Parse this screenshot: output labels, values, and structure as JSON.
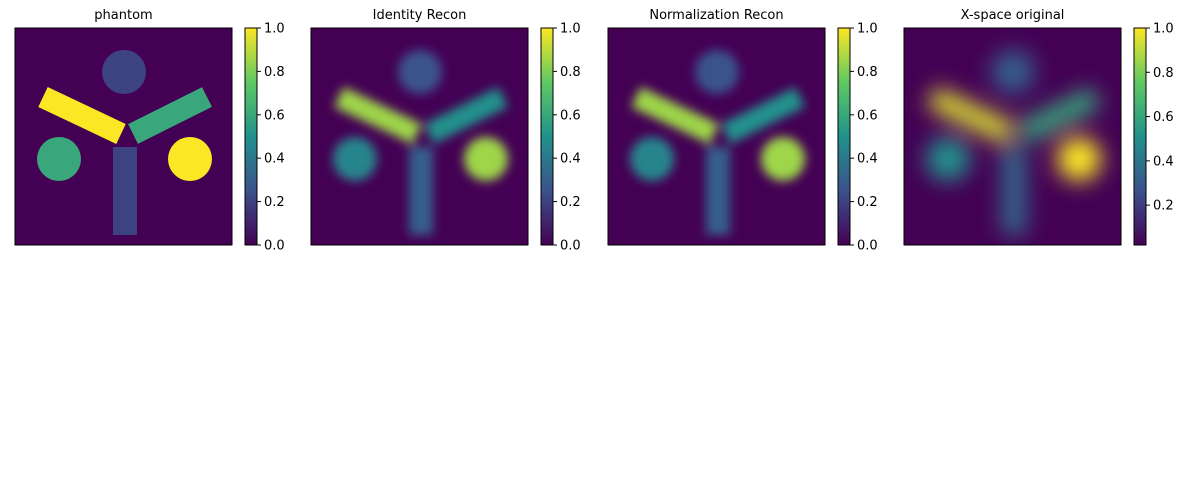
{
  "chart_data": [
    {
      "type": "heatmap",
      "title": "phantom",
      "variant": "sharp",
      "colormap": "viridis",
      "colorbar": {
        "ticks": [
          "0.0",
          "0.2",
          "0.4",
          "0.6",
          "0.8",
          "1.0"
        ],
        "range": [
          0,
          1
        ]
      },
      "axes": {
        "ticks": "off",
        "grid": false
      },
      "regions": [
        {
          "shape": "circle",
          "name": "top-disk",
          "value": 0.2
        },
        {
          "shape": "circle",
          "name": "left-disk",
          "value": 0.6
        },
        {
          "shape": "circle",
          "name": "right-disk",
          "value": 1.0
        },
        {
          "shape": "bar",
          "name": "left-arm",
          "value": 1.0
        },
        {
          "shape": "bar",
          "name": "right-arm",
          "value": 0.6
        },
        {
          "shape": "bar",
          "name": "stem",
          "value": 0.2
        }
      ]
    },
    {
      "type": "heatmap",
      "title": "Identity Recon",
      "variant": "recon",
      "colormap": "viridis",
      "colorbar": {
        "ticks": [
          "0.0",
          "0.2",
          "0.4",
          "0.6",
          "0.8",
          "1.0"
        ],
        "range": [
          0,
          1
        ]
      },
      "axes": {
        "ticks": "off",
        "grid": false
      },
      "regions": [
        {
          "shape": "circle",
          "name": "top-disk",
          "value": 0.25
        },
        {
          "shape": "circle",
          "name": "left-disk",
          "value": 0.45
        },
        {
          "shape": "circle",
          "name": "right-disk",
          "value": 0.85
        },
        {
          "shape": "bar",
          "name": "left-arm",
          "value": 0.85
        },
        {
          "shape": "bar",
          "name": "right-arm",
          "value": 0.5
        },
        {
          "shape": "bar",
          "name": "stem",
          "value": 0.3
        }
      ]
    },
    {
      "type": "heatmap",
      "title": "Normalization Recon",
      "variant": "recon",
      "colormap": "viridis",
      "colorbar": {
        "ticks": [
          "0.0",
          "0.2",
          "0.4",
          "0.6",
          "0.8",
          "1.0"
        ],
        "range": [
          0,
          1
        ]
      },
      "axes": {
        "ticks": "off",
        "grid": false
      },
      "regions": [
        {
          "shape": "circle",
          "name": "top-disk",
          "value": 0.25
        },
        {
          "shape": "circle",
          "name": "left-disk",
          "value": 0.45
        },
        {
          "shape": "circle",
          "name": "right-disk",
          "value": 0.85
        },
        {
          "shape": "bar",
          "name": "left-arm",
          "value": 0.85
        },
        {
          "shape": "bar",
          "name": "right-arm",
          "value": 0.5
        },
        {
          "shape": "bar",
          "name": "stem",
          "value": 0.3
        }
      ]
    },
    {
      "type": "heatmap",
      "title": "X-space original",
      "variant": "blur",
      "colormap": "viridis",
      "colorbar": {
        "ticks": [
          "0.2",
          "0.4",
          "0.6",
          "0.8",
          "1.0"
        ],
        "range": [
          0.02,
          1
        ]
      },
      "axes": {
        "ticks": "off",
        "grid": false
      },
      "regions": [
        {
          "shape": "circle",
          "name": "top-disk",
          "value": 0.3
        },
        {
          "shape": "circle",
          "name": "left-disk",
          "value": 0.5
        },
        {
          "shape": "circle",
          "name": "right-disk",
          "value": 1.0
        },
        {
          "shape": "bar",
          "name": "left-arm",
          "value": 0.95
        },
        {
          "shape": "bar",
          "name": "right-arm",
          "value": 0.6
        },
        {
          "shape": "bar",
          "name": "stem",
          "value": 0.35
        }
      ]
    }
  ],
  "colors": {
    "viridis": [
      "#440154",
      "#3b528b",
      "#21918c",
      "#5ec962",
      "#fde725"
    ],
    "background": "#440154"
  }
}
